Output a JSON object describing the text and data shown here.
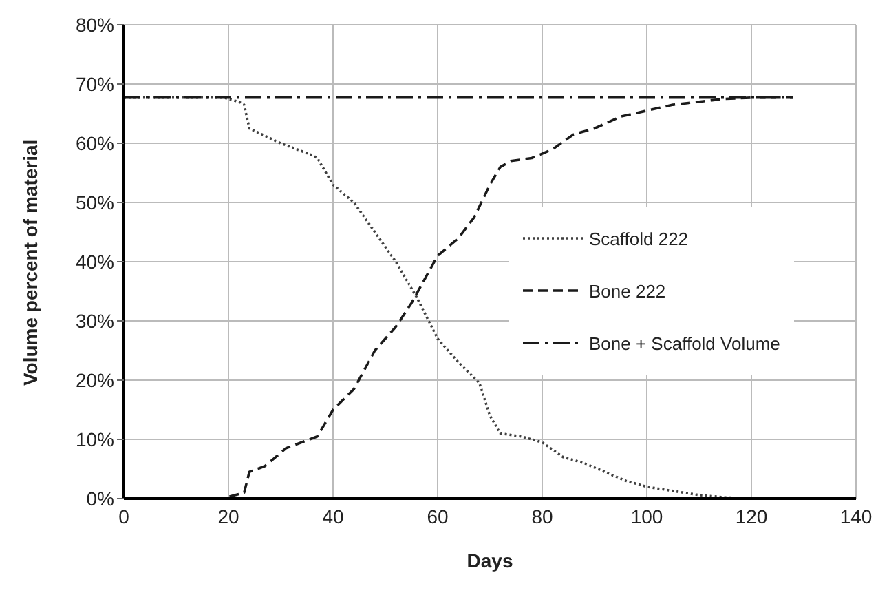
{
  "chart_data": {
    "type": "line",
    "xlabel": "Days",
    "ylabel": "Volume percent of material",
    "xlim": [
      0,
      140
    ],
    "xticks": [
      0,
      20,
      40,
      60,
      80,
      100,
      120,
      140
    ],
    "ylim": [
      0,
      80
    ],
    "yticks": [
      {
        "value": 0,
        "label": "0%"
      },
      {
        "value": 10,
        "label": "10%"
      },
      {
        "value": 20,
        "label": "20%"
      },
      {
        "value": 30,
        "label": "30%"
      },
      {
        "value": 40,
        "label": "40%"
      },
      {
        "value": 50,
        "label": "50%"
      },
      {
        "value": 60,
        "label": "60%"
      },
      {
        "value": 70,
        "label": "70%"
      },
      {
        "value": 80,
        "label": "80%"
      }
    ],
    "grid": true,
    "legend": "right",
    "marker": "none",
    "series": [
      {
        "name": "Scaffold 222",
        "color": "#404040",
        "line_style": "dotted",
        "x": [
          0,
          19,
          20,
          22,
          23,
          24,
          30,
          36,
          37,
          40,
          44,
          48,
          52,
          56,
          60,
          64,
          68,
          70,
          72,
          76,
          80,
          84,
          88,
          92,
          96,
          100,
          105,
          110,
          115,
          120,
          128
        ],
        "values": [
          67.7,
          67.7,
          67.5,
          67,
          66.5,
          62.5,
          60,
          58,
          57.5,
          53,
          50,
          45,
          40,
          34,
          27,
          23,
          19.5,
          14,
          11,
          10.5,
          9.5,
          7,
          6,
          4.5,
          3,
          2,
          1.3,
          0.6,
          0.2,
          0,
          0
        ]
      },
      {
        "name": "Bone 222",
        "color": "#1a1a1a",
        "line_style": "dashed",
        "x": [
          0,
          19,
          20,
          23,
          24,
          27,
          31,
          37,
          40,
          44,
          48,
          52,
          55,
          60,
          64,
          67,
          70,
          72,
          74,
          78,
          82,
          86,
          90,
          95,
          100,
          105,
          110,
          115,
          120,
          128
        ],
        "values": [
          0,
          0,
          0.3,
          1,
          4.5,
          5.5,
          8.5,
          10.5,
          15,
          18.5,
          25,
          29,
          33,
          41,
          44,
          47.5,
          53,
          56,
          57,
          57.5,
          59,
          61.5,
          62.5,
          64.5,
          65.5,
          66.5,
          67,
          67.5,
          67.7,
          67.7
        ]
      },
      {
        "name": "Bone + Scaffold Volume",
        "color": "#1a1a1a",
        "line_style": "dashdot",
        "x": [
          0,
          128
        ],
        "values": [
          67.7,
          67.7
        ]
      }
    ]
  }
}
